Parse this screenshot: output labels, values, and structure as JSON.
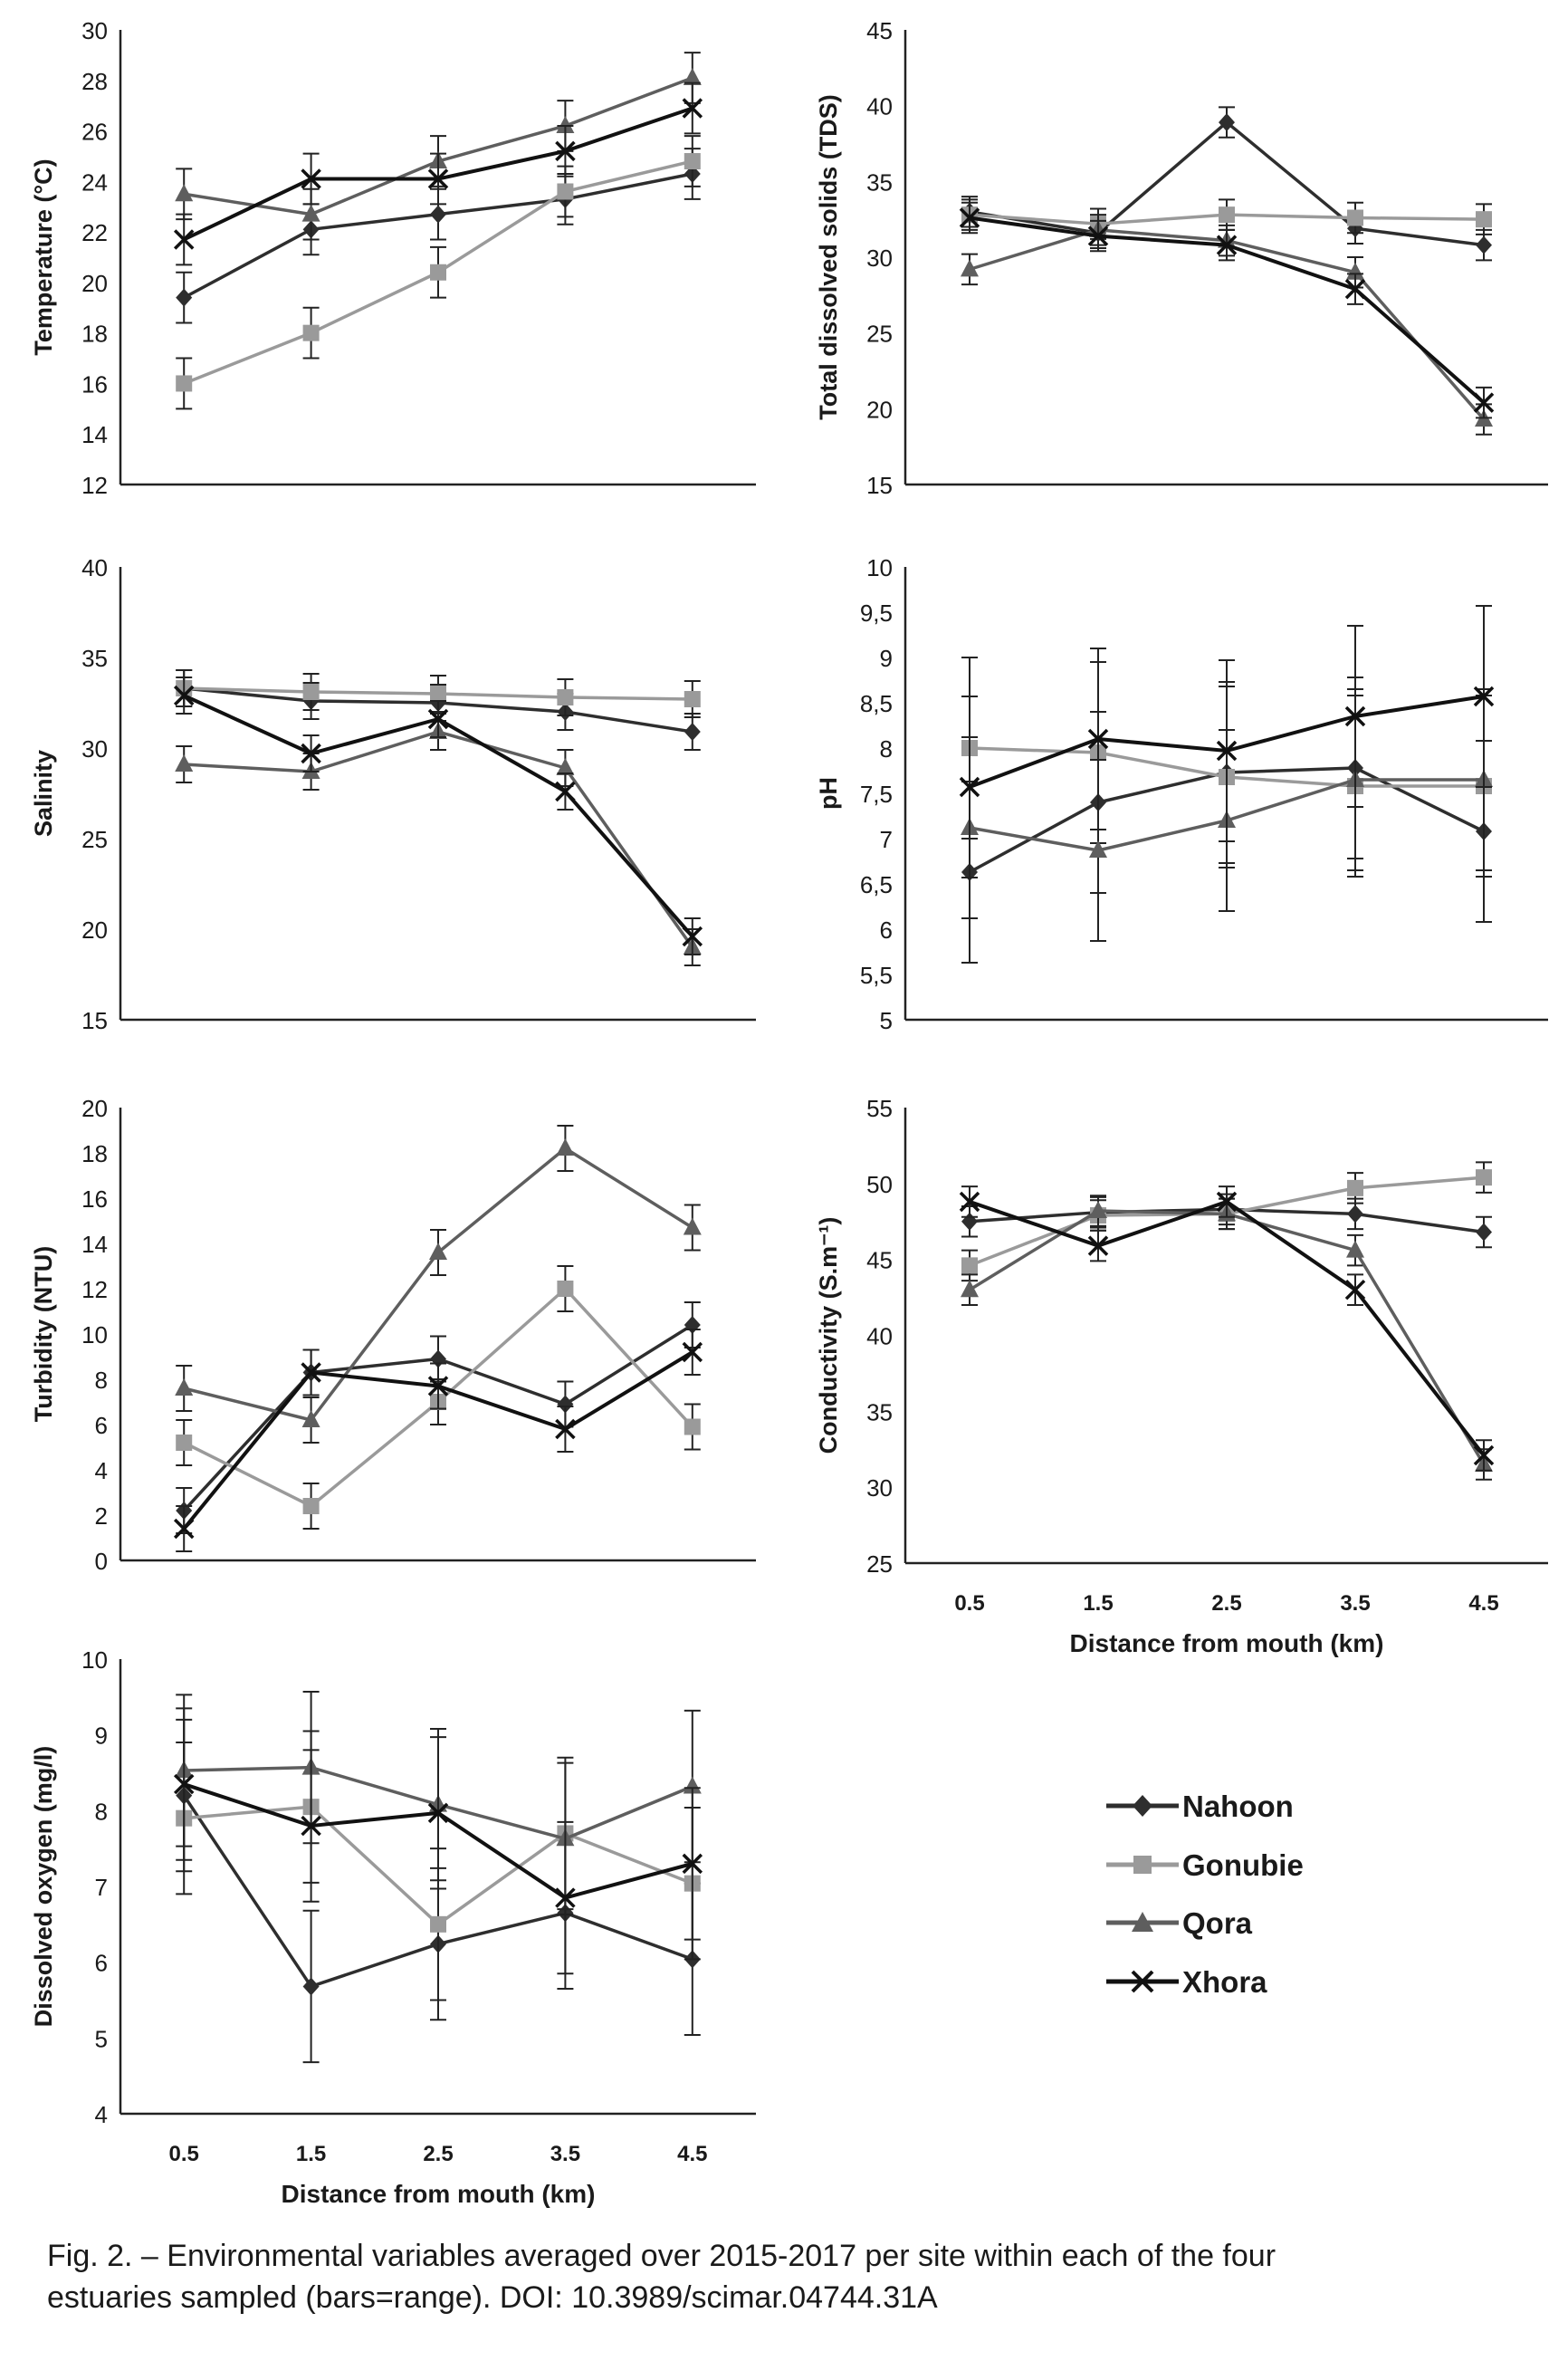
{
  "legend": {
    "entries": [
      {
        "name": "Nahoon",
        "color": "#2e2e2e",
        "marker": "diamond"
      },
      {
        "name": "Gonubie",
        "color": "#9a9a9a",
        "marker": "square"
      },
      {
        "name": "Qora",
        "color": "#5e5e5e",
        "marker": "triangle"
      },
      {
        "name": "Xhora",
        "color": "#111111",
        "marker": "x"
      }
    ]
  },
  "caption": {
    "line1": "Fig. 2. – Environmental variables averaged over 2015-2017 per site within each of the four",
    "line2": "estuaries sampled (bars=range). DOI: 10.3989/scimar.04744.31A"
  },
  "chart_data": [
    {
      "type": "line",
      "id": "temperature",
      "ylabel": "Temperature (°C)",
      "xlabel": "",
      "x": [
        "0.5",
        "1.5",
        "2.5",
        "3.5",
        "4.5"
      ],
      "show_xticks": false,
      "ylim": [
        12,
        30
      ],
      "yticks": [
        "12",
        "14",
        "16",
        "18",
        "20",
        "22",
        "24",
        "26",
        "28",
        "30"
      ],
      "series": [
        {
          "name": "Nahoon",
          "values": [
            19.4,
            22.1,
            22.7,
            23.3,
            24.3
          ],
          "err": [
            1.0,
            1.0,
            1.0,
            1.0,
            1.0
          ]
        },
        {
          "name": "Gonubie",
          "values": [
            16.0,
            18.0,
            20.4,
            23.6,
            24.8
          ],
          "err": [
            1.0,
            1.0,
            1.0,
            1.0,
            1.0
          ]
        },
        {
          "name": "Qora",
          "values": [
            23.5,
            22.7,
            24.8,
            26.2,
            28.1
          ],
          "err": [
            1.0,
            1.0,
            1.0,
            1.0,
            1.0
          ]
        },
        {
          "name": "Xhora",
          "values": [
            21.7,
            24.1,
            24.1,
            25.2,
            26.9
          ],
          "err": [
            1.0,
            1.0,
            1.0,
            1.0,
            1.0
          ]
        }
      ]
    },
    {
      "type": "line",
      "id": "tds",
      "ylabel": "Total dissolved solids (TDS)",
      "xlabel": "",
      "x": [
        "0.5",
        "1.5",
        "2.5",
        "3.5",
        "4.5"
      ],
      "show_xticks": false,
      "ylim": [
        15,
        45
      ],
      "yticks": [
        "15",
        "20",
        "25",
        "30",
        "35",
        "40",
        "45"
      ],
      "series": [
        {
          "name": "Nahoon",
          "values": [
            33.0,
            31.6,
            38.9,
            31.9,
            30.8
          ],
          "err": [
            1.0,
            1.0,
            1.0,
            1.0,
            1.0
          ]
        },
        {
          "name": "Gonubie",
          "values": [
            32.8,
            32.2,
            32.8,
            32.6,
            32.5
          ],
          "err": [
            1.0,
            1.0,
            1.0,
            1.0,
            1.0
          ]
        },
        {
          "name": "Qora",
          "values": [
            29.2,
            31.8,
            31.1,
            29.0,
            19.3
          ],
          "err": [
            1.0,
            1.0,
            1.0,
            1.0,
            1.0
          ]
        },
        {
          "name": "Xhora",
          "values": [
            32.6,
            31.4,
            30.8,
            27.9,
            20.4
          ],
          "err": [
            1.0,
            1.0,
            1.0,
            1.0,
            1.0
          ]
        }
      ]
    },
    {
      "type": "line",
      "id": "salinity",
      "ylabel": "Salinity",
      "xlabel": "",
      "x": [
        "0.5",
        "1.5",
        "2.5",
        "3.5",
        "4.5"
      ],
      "show_xticks": false,
      "ylim": [
        15,
        40
      ],
      "yticks": [
        "15",
        "20",
        "25",
        "30",
        "35",
        "40"
      ],
      "series": [
        {
          "name": "Nahoon",
          "values": [
            33.3,
            32.6,
            32.5,
            32.0,
            30.9
          ],
          "err": [
            1.0,
            1.0,
            1.0,
            1.0,
            1.0
          ]
        },
        {
          "name": "Gonubie",
          "values": [
            33.3,
            33.1,
            33.0,
            32.8,
            32.7
          ],
          "err": [
            1.0,
            1.0,
            1.0,
            1.0,
            1.0
          ]
        },
        {
          "name": "Qora",
          "values": [
            29.1,
            28.7,
            30.9,
            28.9,
            19.0
          ],
          "err": [
            1.0,
            1.0,
            1.0,
            1.0,
            1.0
          ]
        },
        {
          "name": "Xhora",
          "values": [
            32.9,
            29.7,
            31.6,
            27.6,
            19.6
          ],
          "err": [
            1.0,
            1.0,
            1.0,
            1.0,
            1.0
          ]
        }
      ]
    },
    {
      "type": "line",
      "id": "ph",
      "ylabel": "pH",
      "xlabel": "",
      "x": [
        "0.5",
        "1.5",
        "2.5",
        "3.5",
        "4.5"
      ],
      "show_xticks": false,
      "ylim": [
        5,
        10
      ],
      "yticks": [
        "5",
        "5,5",
        "6",
        "6,5",
        "7",
        "7,5",
        "8",
        "8,5",
        "9",
        "9,5",
        "10"
      ],
      "series": [
        {
          "name": "Nahoon",
          "values": [
            6.63,
            7.4,
            7.73,
            7.78,
            7.08
          ],
          "err": [
            1.0,
            1.0,
            1.0,
            1.0,
            1.0
          ]
        },
        {
          "name": "Gonubie",
          "values": [
            8.0,
            7.95,
            7.68,
            7.58,
            7.58
          ],
          "err": [
            1.0,
            1.0,
            1.0,
            1.0,
            1.0
          ]
        },
        {
          "name": "Qora",
          "values": [
            7.12,
            6.87,
            7.2,
            7.65,
            7.65
          ],
          "err": [
            1.0,
            1.0,
            1.0,
            1.0,
            1.0
          ]
        },
        {
          "name": "Xhora",
          "values": [
            7.57,
            8.1,
            7.97,
            8.35,
            8.57
          ],
          "err": [
            1.0,
            1.0,
            1.0,
            1.0,
            1.0
          ]
        }
      ]
    },
    {
      "type": "line",
      "id": "turbidity",
      "ylabel": "Turbidity (NTU)",
      "xlabel": "",
      "x": [
        "0.5",
        "1.5",
        "2.5",
        "3.5",
        "4.5"
      ],
      "show_xticks": false,
      "ylim": [
        0,
        20
      ],
      "yticks": [
        "0",
        "2",
        "4",
        "6",
        "8",
        "10",
        "12",
        "14",
        "16",
        "18",
        "20"
      ],
      "series": [
        {
          "name": "Nahoon",
          "values": [
            2.2,
            8.3,
            8.9,
            6.9,
            10.4
          ],
          "err": [
            1.0,
            1.0,
            1.0,
            1.0,
            1.0
          ]
        },
        {
          "name": "Gonubie",
          "values": [
            5.2,
            2.4,
            7.0,
            12.0,
            5.9
          ],
          "err": [
            1.0,
            1.0,
            1.0,
            1.0,
            1.0
          ]
        },
        {
          "name": "Qora",
          "values": [
            7.6,
            6.2,
            13.6,
            18.2,
            14.7
          ],
          "err": [
            1.0,
            1.0,
            1.0,
            1.0,
            1.0
          ]
        },
        {
          "name": "Xhora",
          "values": [
            1.4,
            8.3,
            7.7,
            5.8,
            9.2
          ],
          "err": [
            1.0,
            1.0,
            1.0,
            1.0,
            1.0
          ]
        }
      ]
    },
    {
      "type": "line",
      "id": "conductivity",
      "ylabel": "Conductivity (S.m⁻¹)",
      "xlabel": "Distance from mouth (km)",
      "x": [
        "0.5",
        "1.5",
        "2.5",
        "3.5",
        "4.5"
      ],
      "show_xticks": true,
      "ylim": [
        25,
        55
      ],
      "yticks": [
        "25",
        "30",
        "35",
        "40",
        "45",
        "50",
        "55"
      ],
      "series": [
        {
          "name": "Nahoon",
          "values": [
            47.5,
            48.1,
            48.3,
            48.0,
            46.8
          ],
          "err": [
            1.0,
            1.0,
            1.0,
            1.0,
            1.0
          ]
        },
        {
          "name": "Gonubie",
          "values": [
            44.6,
            47.9,
            48.0,
            49.7,
            50.4
          ],
          "err": [
            1.0,
            1.0,
            1.0,
            1.0,
            1.0
          ]
        },
        {
          "name": "Qora",
          "values": [
            43.0,
            48.2,
            48.0,
            45.6,
            31.5
          ],
          "err": [
            1.0,
            1.0,
            1.0,
            1.0,
            1.0
          ]
        },
        {
          "name": "Xhora",
          "values": [
            48.8,
            45.9,
            48.8,
            43.0,
            32.1
          ],
          "err": [
            1.0,
            1.0,
            1.0,
            1.0,
            1.0
          ]
        }
      ]
    },
    {
      "type": "line",
      "id": "dissolved_oxygen",
      "ylabel": "Dissolved oxygen (mg/l)",
      "xlabel": "Distance from mouth (km)",
      "x": [
        "0.5",
        "1.5",
        "2.5",
        "3.5",
        "4.5"
      ],
      "show_xticks": true,
      "ylim": [
        4,
        10
      ],
      "yticks": [
        "4",
        "5",
        "6",
        "7",
        "8",
        "9",
        "10"
      ],
      "series": [
        {
          "name": "Nahoon",
          "values": [
            8.2,
            5.68,
            6.24,
            6.65,
            6.04
          ],
          "err": [
            1.0,
            1.0,
            1.0,
            1.0,
            1.0
          ]
        },
        {
          "name": "Gonubie",
          "values": [
            7.9,
            8.05,
            6.5,
            7.7,
            7.04
          ],
          "err": [
            1.0,
            1.0,
            1.0,
            1.0,
            1.0
          ]
        },
        {
          "name": "Qora",
          "values": [
            8.53,
            8.57,
            8.08,
            7.63,
            8.32
          ],
          "err": [
            1.0,
            1.0,
            1.0,
            1.0,
            1.0
          ]
        },
        {
          "name": "Xhora",
          "values": [
            8.35,
            7.8,
            7.97,
            6.85,
            7.3
          ],
          "err": [
            1.0,
            1.0,
            1.0,
            1.0,
            1.0
          ]
        }
      ]
    }
  ]
}
